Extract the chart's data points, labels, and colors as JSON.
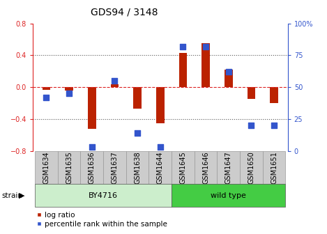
{
  "title": "GDS94 / 3148",
  "samples": [
    "GSM1634",
    "GSM1635",
    "GSM1636",
    "GSM1637",
    "GSM1638",
    "GSM1644",
    "GSM1645",
    "GSM1646",
    "GSM1647",
    "GSM1650",
    "GSM1651"
  ],
  "log_ratio": [
    -0.03,
    -0.04,
    -0.52,
    0.04,
    -0.27,
    -0.45,
    0.43,
    0.55,
    0.22,
    -0.15,
    -0.2
  ],
  "percentile_rank": [
    42,
    45,
    3,
    55,
    14,
    3,
    82,
    82,
    62,
    20,
    20
  ],
  "by4716_count": 6,
  "wild_type_count": 5,
  "bar_color": "#bb2200",
  "point_color": "#3355cc",
  "zero_line_color": "#dd2222",
  "dotted_line_color": "#555555",
  "ylim_left": [
    -0.8,
    0.8
  ],
  "ylim_right": [
    0,
    100
  ],
  "yticks_left": [
    -0.8,
    -0.4,
    0.0,
    0.4,
    0.8
  ],
  "yticks_right": [
    0,
    25,
    50,
    75,
    100
  ],
  "background_color": "#ffffff",
  "plot_bg_color": "#ffffff",
  "bar_width": 0.35,
  "point_size": 30,
  "title_fontsize": 10,
  "axis_tick_fontsize": 7,
  "label_fontsize": 7,
  "legend_fontsize": 7.5,
  "strain_label_fontsize": 8,
  "by4716_color": "#cceecc",
  "wild_type_color": "#44cc44",
  "sample_box_color": "#cccccc",
  "sample_box_edge": "#999999"
}
